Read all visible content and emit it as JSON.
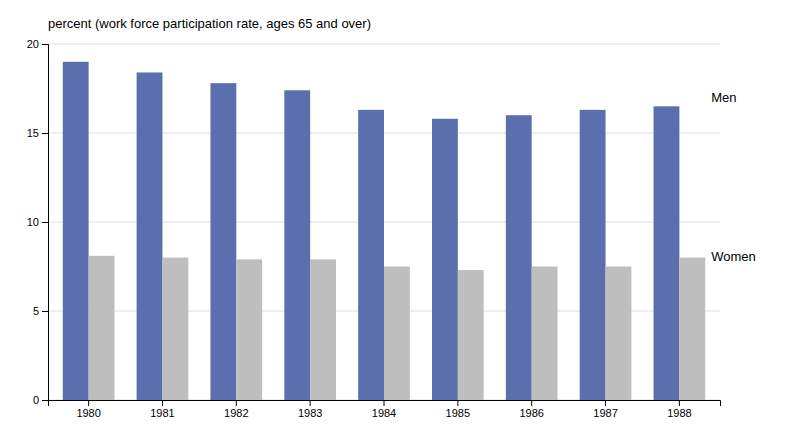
{
  "chart_data": {
    "type": "bar",
    "title": "percent (work force participation rate, ages 65 and over)",
    "categories": [
      "1980",
      "1981",
      "1982",
      "1983",
      "1984",
      "1985",
      "1986",
      "1987",
      "1988"
    ],
    "series": [
      {
        "name": "Men",
        "color": "#5B6EAE",
        "values": [
          19.0,
          18.4,
          17.8,
          17.4,
          16.3,
          15.8,
          16.0,
          16.3,
          16.5
        ]
      },
      {
        "name": "Women",
        "color": "#BEBEBE",
        "values": [
          8.1,
          8.0,
          7.9,
          7.9,
          7.5,
          7.3,
          7.5,
          7.5,
          8.0
        ]
      }
    ],
    "ylim": [
      0,
      20
    ],
    "yticks": [
      0,
      5,
      10,
      15,
      20
    ],
    "grid": true
  }
}
